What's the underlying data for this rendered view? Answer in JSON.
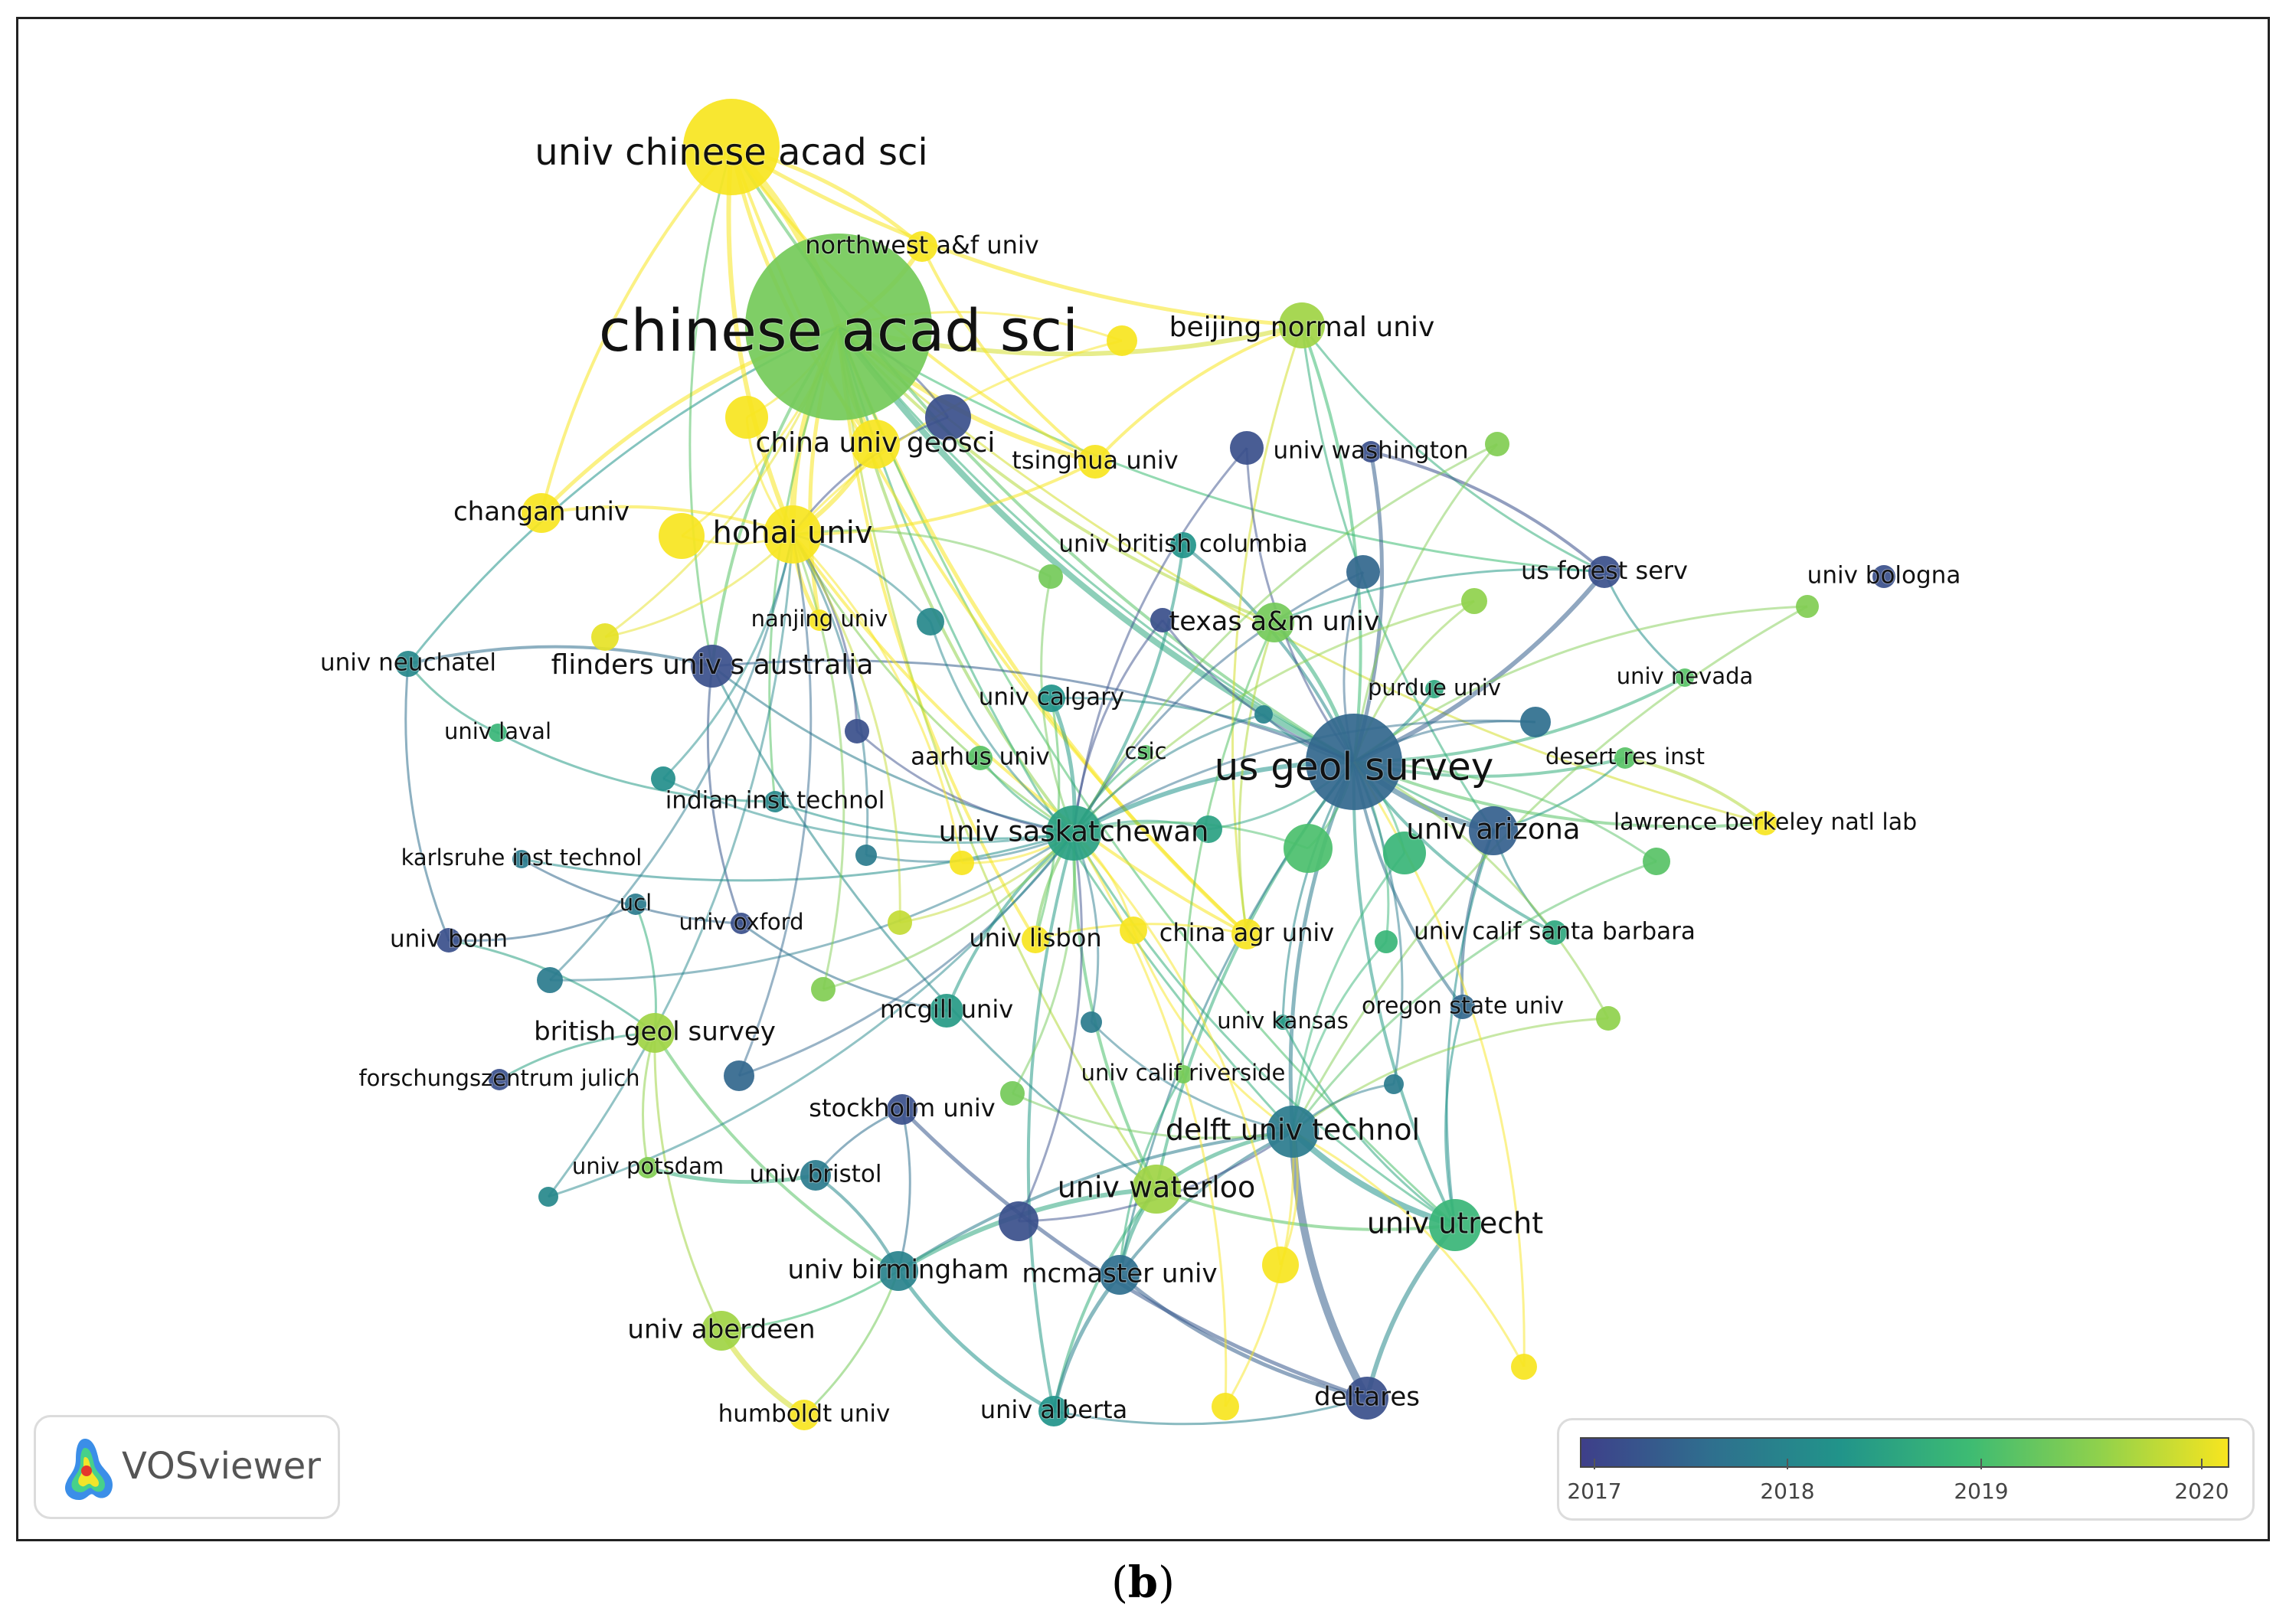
{
  "figure": {
    "caption_open": "(",
    "caption_letter": "b",
    "caption_close": ")",
    "logo_text": "VOSviewer"
  },
  "legend": {
    "years": [
      "2017",
      "2018",
      "2019",
      "2020"
    ],
    "colors": [
      "#3e3f8a",
      "#2f6f8e",
      "#21948a",
      "#3dbb73",
      "#8fd14c",
      "#f7e51f"
    ]
  },
  "nodes": [
    {
      "id": "chinese_acad_sci",
      "label": "chinese acad sci",
      "year": 2019.2,
      "weight": 10
    },
    {
      "id": "univ_chinese_acad_sci",
      "label": "univ chinese acad sci",
      "year": 2020.0,
      "weight": 6
    },
    {
      "id": "us_geol_survey",
      "label": "us geol survey",
      "year": 2017.5,
      "weight": 7
    },
    {
      "id": "northwest_af_univ",
      "label": "northwest a&f univ",
      "year": 2020.0,
      "weight": 2
    },
    {
      "id": "beijing_normal_univ",
      "label": "beijing normal univ",
      "year": 2019.5,
      "weight": 3
    },
    {
      "id": "china_univ_geosci",
      "label": "china univ geosci",
      "year": 2020.0,
      "weight": 3
    },
    {
      "id": "tsinghua_univ",
      "label": "tsinghua univ",
      "year": 2020.0,
      "weight": 2
    },
    {
      "id": "univ_washington",
      "label": "univ washington",
      "year": 2017.2,
      "weight": 1
    },
    {
      "id": "changan_univ",
      "label": "changan univ",
      "year": 2020.0,
      "weight": 2
    },
    {
      "id": "hohai_univ",
      "label": "hohai univ",
      "year": 2020.0,
      "weight": 4
    },
    {
      "id": "univ_british_columbia",
      "label": "univ british columbia",
      "year": 2018.2,
      "weight": 1
    },
    {
      "id": "us_forest_serv",
      "label": "us forest serv",
      "year": 2017.2,
      "weight": 2
    },
    {
      "id": "univ_bologna",
      "label": "univ bologna",
      "year": 2017.2,
      "weight": 1
    },
    {
      "id": "univ_neuchatel",
      "label": "univ neuchatel",
      "year": 2018.0,
      "weight": 1
    },
    {
      "id": "nanjing_univ",
      "label": "nanjing univ",
      "year": 2020.0,
      "weight": 1
    },
    {
      "id": "texas_am_univ",
      "label": "texas a&m univ",
      "year": 2019.2,
      "weight": 2
    },
    {
      "id": "flinders_univ_s_australia",
      "label": "flinders univ s australia",
      "year": 2017.2,
      "weight": 3
    },
    {
      "id": "purdue_univ",
      "label": "purdue univ",
      "year": 2018.5,
      "weight": 1
    },
    {
      "id": "univ_nevada",
      "label": "univ nevada",
      "year": 2019.0,
      "weight": 1
    },
    {
      "id": "univ_laval",
      "label": "univ laval",
      "year": 2018.7,
      "weight": 1
    },
    {
      "id": "univ_calgary",
      "label": "univ calgary",
      "year": 2018.2,
      "weight": 1
    },
    {
      "id": "aarhus_univ",
      "label": "aarhus univ",
      "year": 2019.0,
      "weight": 1
    },
    {
      "id": "csic",
      "label": "csic",
      "year": 2019.0,
      "weight": 1
    },
    {
      "id": "desert_res_inst",
      "label": "desert res inst",
      "year": 2019.0,
      "weight": 1
    },
    {
      "id": "indian_inst_technol",
      "label": "indian inst technol",
      "year": 2018.0,
      "weight": 1
    },
    {
      "id": "univ_saskatchewan",
      "label": "univ saskatchewan",
      "year": 2018.4,
      "weight": 4
    },
    {
      "id": "univ_arizona",
      "label": "univ arizona",
      "year": 2017.4,
      "weight": 3
    },
    {
      "id": "lawrence_berkeley_natl_lab",
      "label": "lawrence berkeley natl lab",
      "year": 2020.0,
      "weight": 1
    },
    {
      "id": "karlsruhe_inst_technol",
      "label": "karlsruhe inst technol",
      "year": 2017.8,
      "weight": 1
    },
    {
      "id": "ucl",
      "label": "ucl",
      "year": 2017.8,
      "weight": 1
    },
    {
      "id": "univ_oxford",
      "label": "univ oxford",
      "year": 2017.2,
      "weight": 1
    },
    {
      "id": "univ_bonn",
      "label": "univ bonn",
      "year": 2017.2,
      "weight": 1
    },
    {
      "id": "univ_lisbon",
      "label": "univ lisbon",
      "year": 2020.0,
      "weight": 1
    },
    {
      "id": "china_agr_univ",
      "label": "china agr univ",
      "year": 2020.0,
      "weight": 1
    },
    {
      "id": "univ_calif_santa_barbara",
      "label": "univ calif santa barbara",
      "year": 2018.5,
      "weight": 1
    },
    {
      "id": "mcgill_univ",
      "label": "mcgill univ",
      "year": 2018.3,
      "weight": 1
    },
    {
      "id": "univ_kansas",
      "label": "univ kansas",
      "year": 2018.3,
      "weight": 1
    },
    {
      "id": "oregon_state_univ",
      "label": "oregon state univ",
      "year": 2017.5,
      "weight": 1
    },
    {
      "id": "british_geol_survey",
      "label": "british geol survey",
      "year": 2019.5,
      "weight": 2
    },
    {
      "id": "forschungszentrum_julich",
      "label": "forschungszentrum julich",
      "year": 2017.2,
      "weight": 1
    },
    {
      "id": "univ_calif_riverside",
      "label": "univ calif riverside",
      "year": 2019.2,
      "weight": 1
    },
    {
      "id": "stockholm_univ",
      "label": "stockholm univ",
      "year": 2017.2,
      "weight": 1
    },
    {
      "id": "delft_univ_technol",
      "label": "delft univ technol",
      "year": 2017.8,
      "weight": 4
    },
    {
      "id": "univ_potsdam",
      "label": "univ potsdam",
      "year": 2019.3,
      "weight": 1
    },
    {
      "id": "univ_bristol",
      "label": "univ bristol",
      "year": 2017.8,
      "weight": 1
    },
    {
      "id": "univ_waterloo",
      "label": "univ waterloo",
      "year": 2019.5,
      "weight": 3
    },
    {
      "id": "univ_utrecht",
      "label": "univ utrecht",
      "year": 2018.7,
      "weight": 4
    },
    {
      "id": "univ_birmingham",
      "label": "univ birmingham",
      "year": 2017.9,
      "weight": 2
    },
    {
      "id": "mcmaster_univ",
      "label": "mcmaster univ",
      "year": 2017.6,
      "weight": 2
    },
    {
      "id": "univ_aberdeen",
      "label": "univ aberdeen",
      "year": 2019.5,
      "weight": 2
    },
    {
      "id": "humboldt_univ",
      "label": "humboldt univ",
      "year": 2020.0,
      "weight": 1
    },
    {
      "id": "univ_alberta",
      "label": "univ alberta",
      "year": 2018.2,
      "weight": 1
    },
    {
      "id": "deltares",
      "label": "deltares",
      "year": 2017.2,
      "weight": 2
    }
  ]
}
